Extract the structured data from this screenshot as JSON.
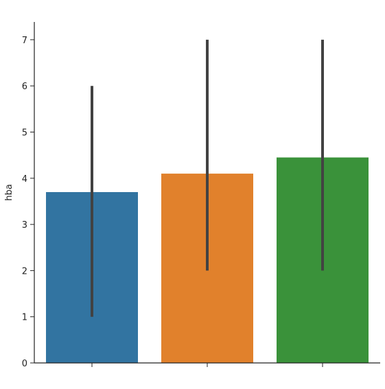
{
  "chart_data": {
    "type": "bar",
    "title": "",
    "xlabel": "",
    "ylabel": "hba",
    "ylim": [
      0,
      7.4
    ],
    "yticks": [
      0,
      1,
      2,
      3,
      4,
      5,
      6,
      7
    ],
    "categories": [
      "",
      "",
      ""
    ],
    "values": [
      3.7,
      4.1,
      4.45
    ],
    "error_low": [
      1,
      2,
      2
    ],
    "error_high": [
      6,
      7,
      7
    ],
    "colors": [
      "#3274a1",
      "#e1812c",
      "#3a923a"
    ],
    "errorbar_color": "#424242",
    "axis_color": "#222222",
    "grid": false,
    "legend": "none"
  }
}
